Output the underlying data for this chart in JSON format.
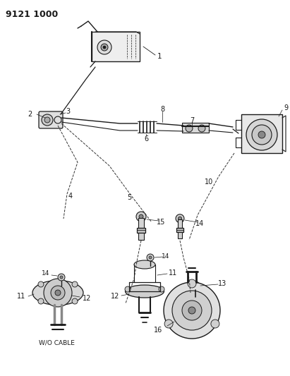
{
  "diagram_id": "9121 1000",
  "bg": "#ffffff",
  "lc": "#1a1a1a",
  "fig_w": 4.11,
  "fig_h": 5.33,
  "dpi": 100,
  "title": "9121 1000",
  "wo_cable": "W/O CABLE"
}
